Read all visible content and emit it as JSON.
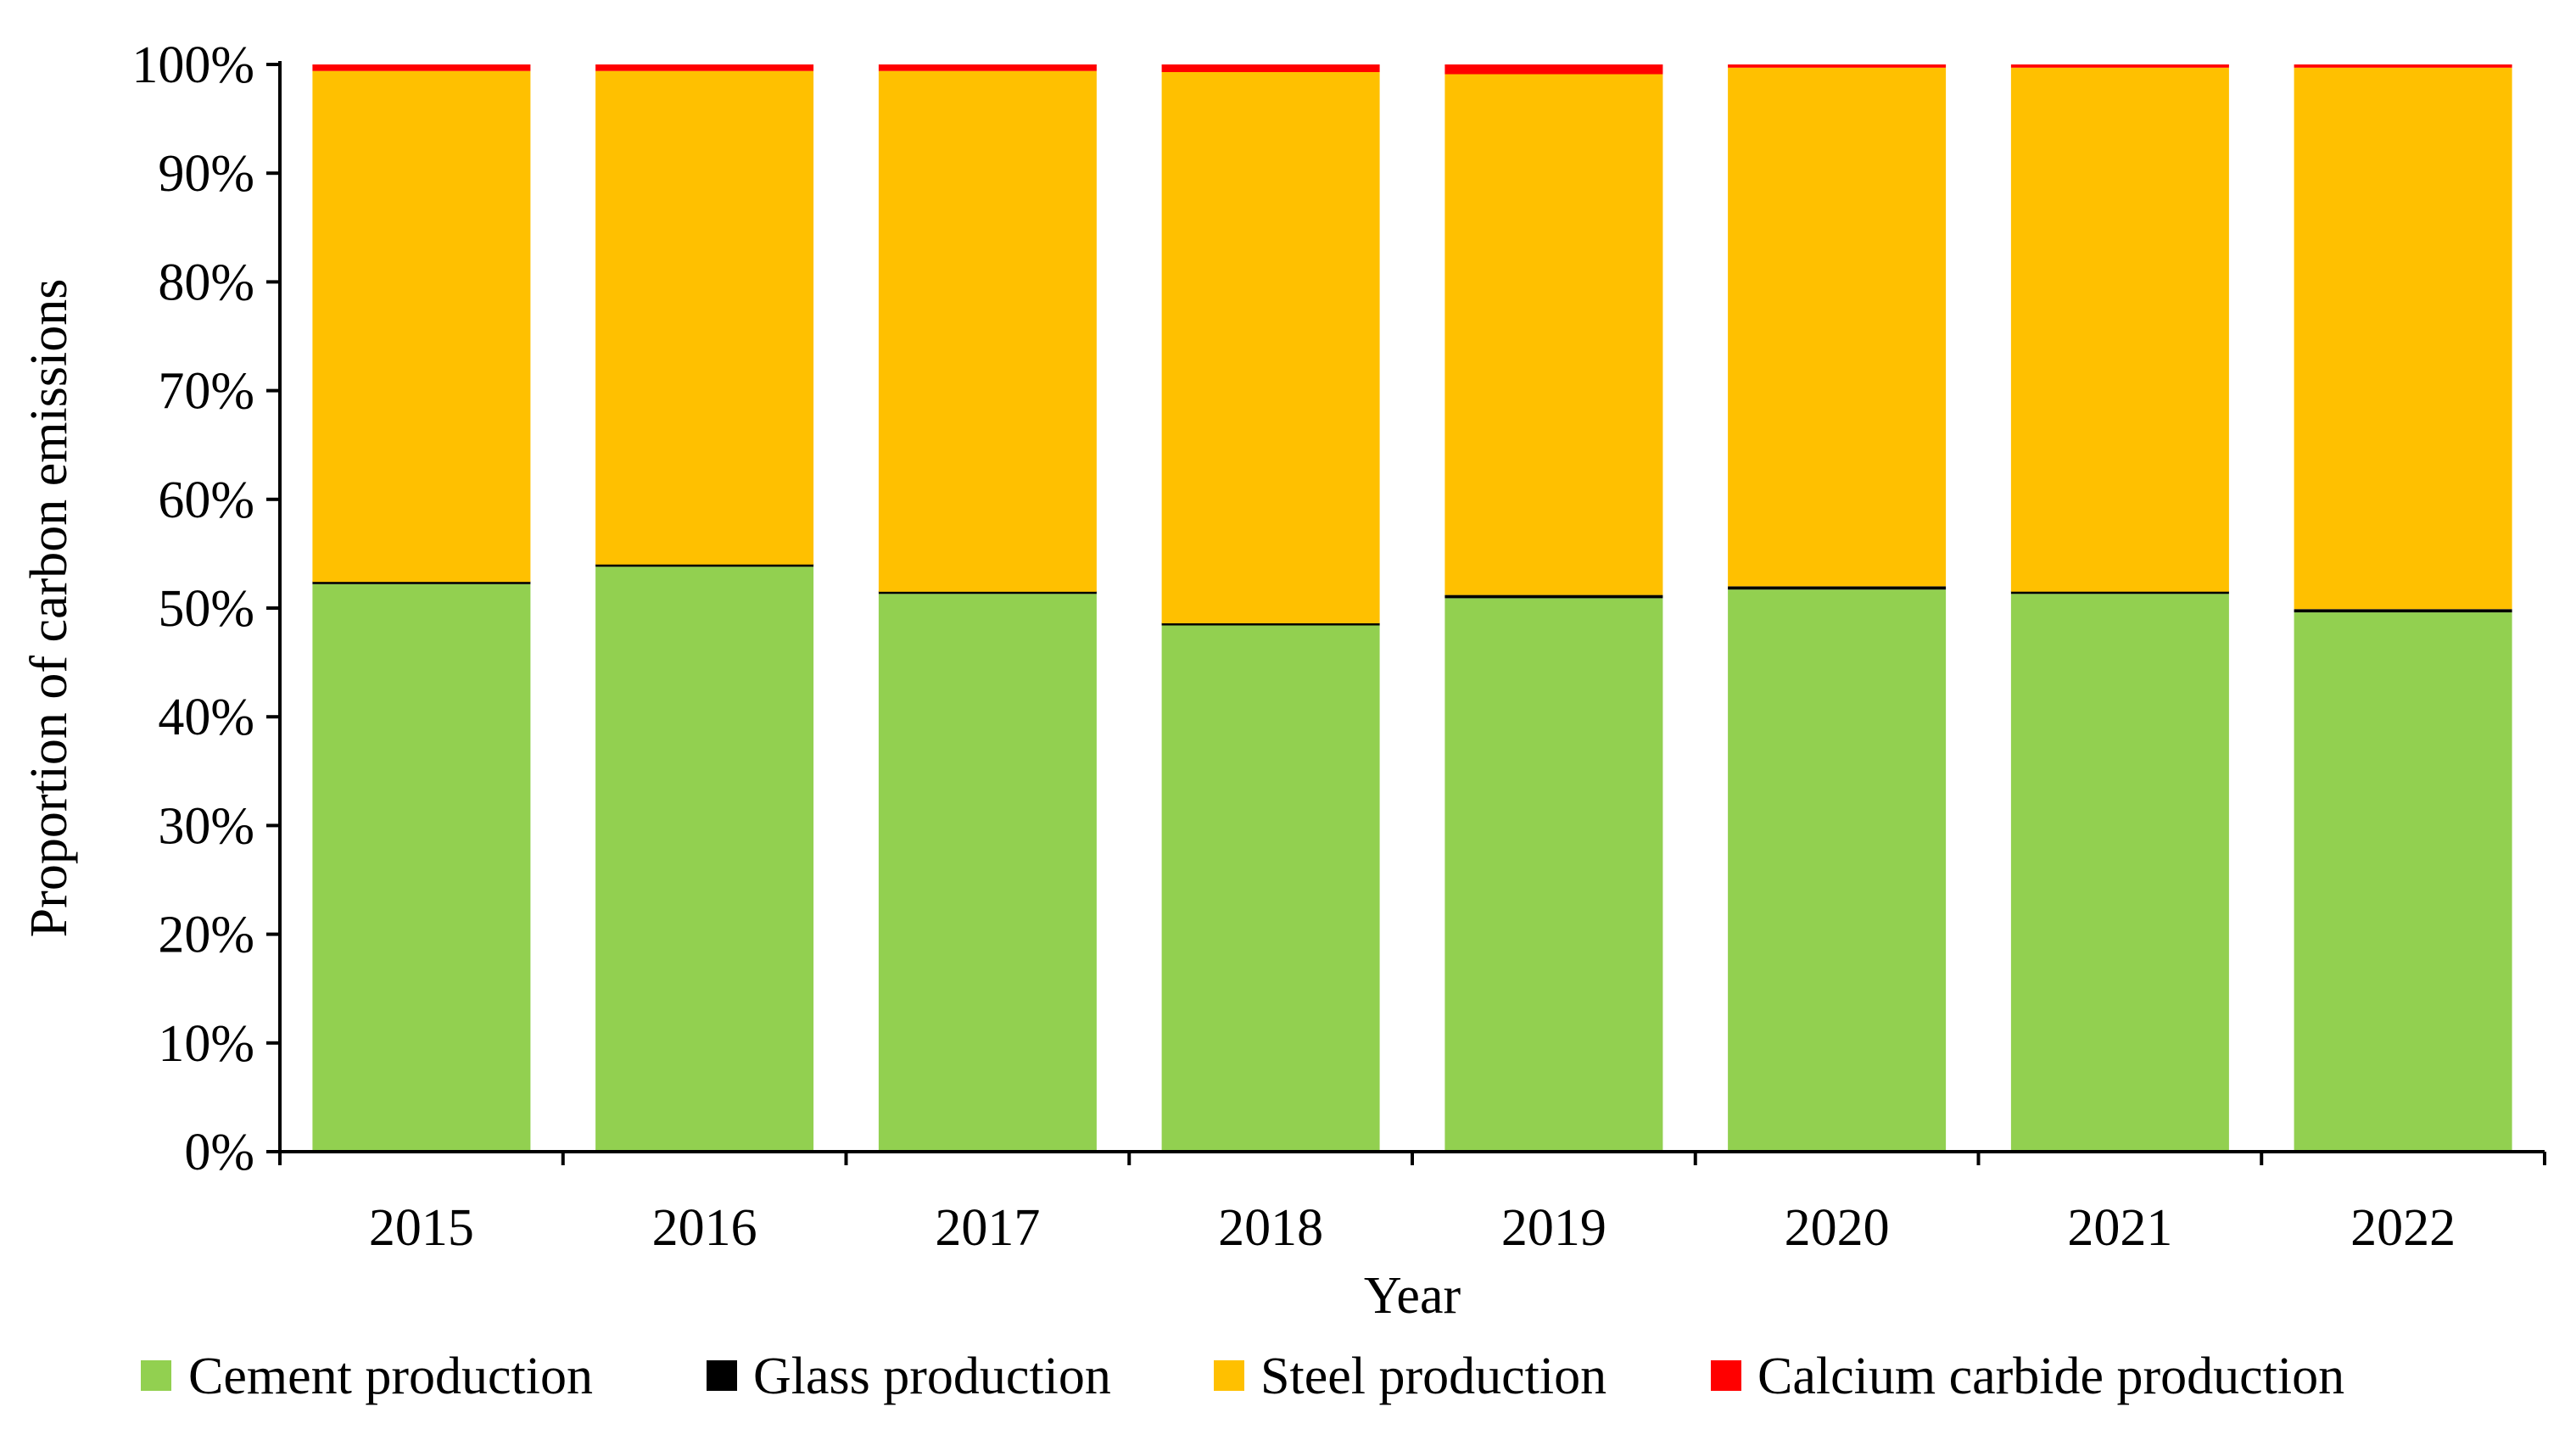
{
  "chart_data": {
    "type": "bar",
    "stacked": true,
    "title": "",
    "xlabel": "Year",
    "ylabel": "Proportion of carbon emissions",
    "ylim": [
      0,
      100
    ],
    "yticks": [
      "0%",
      "10%",
      "20%",
      "30%",
      "40%",
      "50%",
      "60%",
      "70%",
      "80%",
      "90%",
      "100%"
    ],
    "categories": [
      "2015",
      "2016",
      "2017",
      "2018",
      "2019",
      "2020",
      "2021",
      "2022"
    ],
    "series": [
      {
        "name": "Cement production",
        "color": "#92D050",
        "values": [
          52.2,
          53.8,
          51.3,
          48.4,
          50.9,
          51.7,
          51.3,
          49.6
        ]
      },
      {
        "name": "Glass production",
        "color": "#000000",
        "values": [
          0.2,
          0.2,
          0.2,
          0.2,
          0.3,
          0.3,
          0.2,
          0.3
        ]
      },
      {
        "name": "Steel production",
        "color": "#FFC000",
        "values": [
          47.0,
          45.4,
          47.9,
          50.7,
          47.9,
          47.7,
          48.2,
          49.8
        ]
      },
      {
        "name": "Calcium carbide production",
        "color": "#FF0000",
        "values": [
          0.6,
          0.6,
          0.6,
          0.7,
          0.9,
          0.3,
          0.3,
          0.3
        ]
      }
    ],
    "legend_position": "bottom",
    "grid": false
  }
}
